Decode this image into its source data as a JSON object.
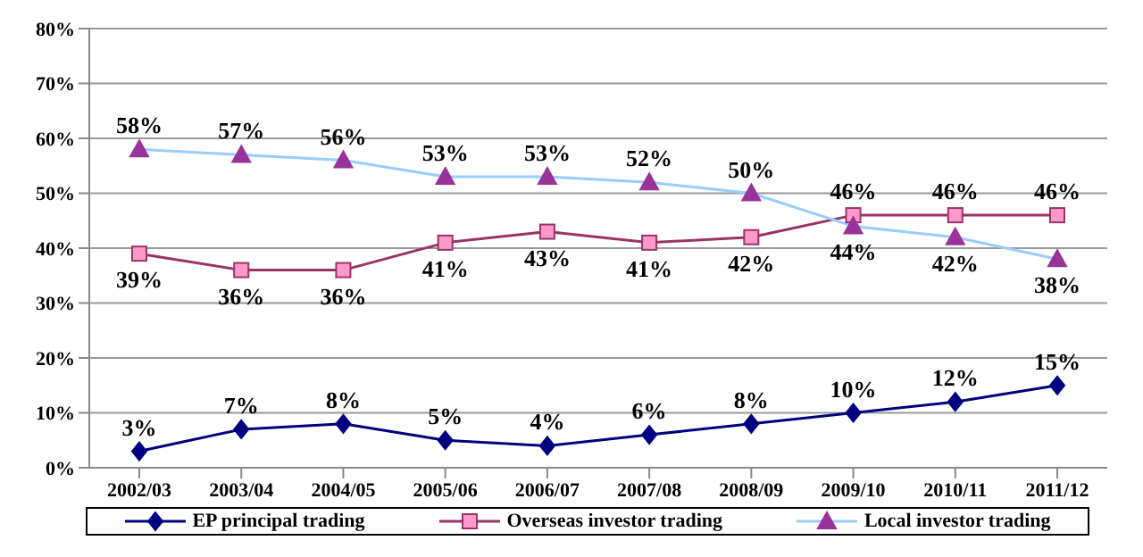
{
  "chart_data": {
    "type": "line",
    "categories": [
      "2002/03",
      "2003/04",
      "2004/05",
      "2005/06",
      "2006/07",
      "2007/08",
      "2008/09",
      "2009/10",
      "2010/11",
      "2011/12"
    ],
    "series": [
      {
        "name": "EP principal trading",
        "color": "#000080",
        "marker": "diamond",
        "values": [
          3,
          7,
          8,
          5,
          4,
          6,
          8,
          10,
          12,
          15
        ],
        "value_labels": [
          "3%",
          "7%",
          "8%",
          "5%",
          "4%",
          "6%",
          "8%",
          "10%",
          "12%",
          "15%"
        ]
      },
      {
        "name": "Overseas investor trading",
        "color": "#993366",
        "marker": "square",
        "values": [
          39,
          36,
          36,
          41,
          43,
          41,
          42,
          46,
          46,
          46
        ],
        "value_labels": [
          "39%",
          "36%",
          "36%",
          "41%",
          "43%",
          "41%",
          "42%",
          "46%",
          "46%",
          "46%"
        ]
      },
      {
        "name": "Local investor trading",
        "color": "#99ccff",
        "marker": "triangle",
        "values": [
          58,
          57,
          56,
          53,
          53,
          52,
          50,
          44,
          42,
          38
        ],
        "value_labels": [
          "58%",
          "57%",
          "56%",
          "53%",
          "53%",
          "52%",
          "50%",
          "44%",
          "42%",
          "38%"
        ]
      }
    ],
    "ylim": [
      0,
      80
    ],
    "yticks": [
      {
        "value": 0,
        "label": "0%"
      },
      {
        "value": 10,
        "label": "10%"
      },
      {
        "value": 20,
        "label": "20%"
      },
      {
        "value": 30,
        "label": "30%"
      },
      {
        "value": 40,
        "label": "40%"
      },
      {
        "value": 50,
        "label": "50%"
      },
      {
        "value": 60,
        "label": "60%"
      },
      {
        "value": 70,
        "label": "70%"
      },
      {
        "value": 80,
        "label": "80%"
      }
    ],
    "grid": "y",
    "legend": "bottom"
  }
}
